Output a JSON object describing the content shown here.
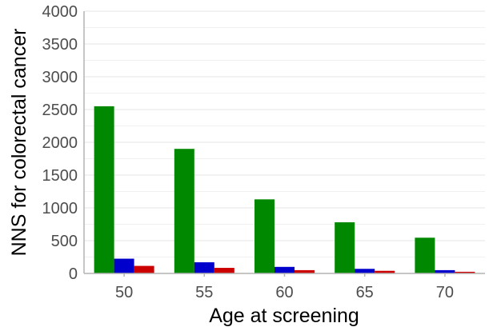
{
  "chart_data": {
    "type": "bar",
    "xlabel": "Age at screening",
    "ylabel": "NNS for colorectal cancer",
    "ylim": [
      0,
      4000
    ],
    "yticks": [
      0,
      500,
      1000,
      1500,
      2000,
      2500,
      3000,
      3500,
      4000
    ],
    "categories": [
      "50",
      "55",
      "60",
      "65",
      "70"
    ],
    "grid": true,
    "legend": "none",
    "series": [
      {
        "color": "#008800",
        "values": [
          2550,
          1900,
          1130,
          780,
          545
        ]
      },
      {
        "color": "#0000cc",
        "values": [
          225,
          170,
          100,
          70,
          50
        ]
      },
      {
        "color": "#cc0000",
        "values": [
          115,
          85,
          50,
          40,
          25
        ]
      }
    ]
  }
}
